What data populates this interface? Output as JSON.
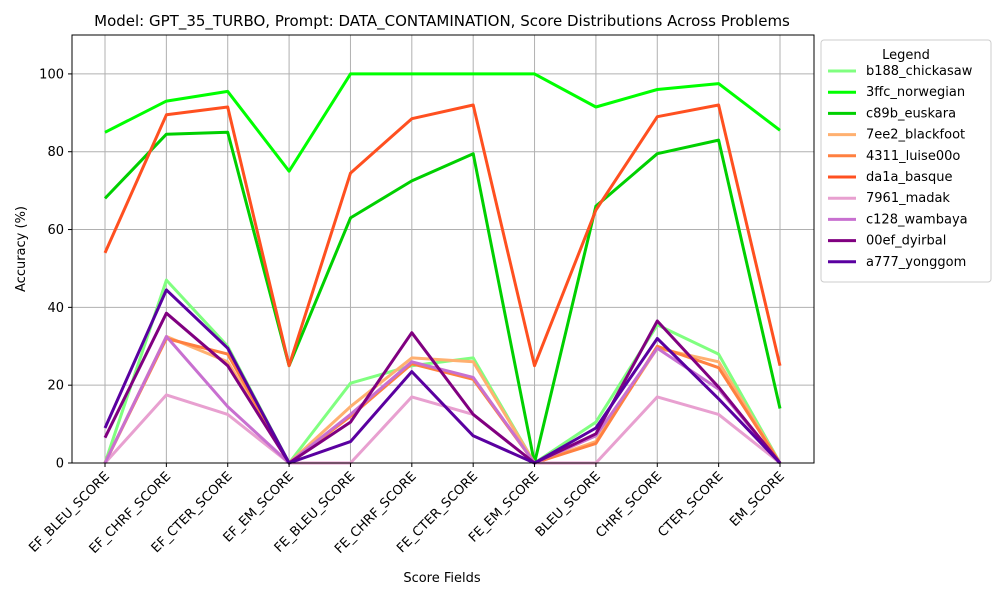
{
  "chart_data": {
    "type": "line",
    "title": "Model: GPT_35_TURBO, Prompt: DATA_CONTAMINATION, Score Distributions Across Problems",
    "xlabel": "Score Fields",
    "ylabel": "Accuracy (%)",
    "ylim": [
      0,
      110
    ],
    "yticks": [
      0,
      20,
      40,
      60,
      80,
      100
    ],
    "grid": true,
    "legend_title": "Legend",
    "legend_position": "outside-right-top",
    "categories": [
      "EF_BLEU_SCORE",
      "EF_CHRF_SCORE",
      "EF_CTER_SCORE",
      "EF_EM_SCORE",
      "FE_BLEU_SCORE",
      "FE_CHRF_SCORE",
      "FE_CTER_SCORE",
      "FE_EM_SCORE",
      "BLEU_SCORE",
      "CHRF_SCORE",
      "CTER_SCORE",
      "EM_SCORE"
    ],
    "series": [
      {
        "name": "b188_chickasaw",
        "color": "#80ff80",
        "values": [
          0,
          47,
          30,
          0,
          20.5,
          25,
          27,
          0,
          10.5,
          35.5,
          28,
          0
        ]
      },
      {
        "name": "3ffc_norwegian",
        "color": "#00ff00",
        "values": [
          85,
          93,
          95.5,
          75,
          100,
          100,
          100,
          100,
          91.5,
          96,
          97.5,
          85.5
        ]
      },
      {
        "name": "c89b_euskara",
        "color": "#00d000",
        "values": [
          68,
          84.5,
          85,
          25,
          63,
          72.5,
          79.5,
          0,
          66,
          79.5,
          83,
          14
        ]
      },
      {
        "name": "7ee2_blackfoot",
        "color": "#ffb070",
        "values": [
          0,
          32.5,
          26,
          0,
          14.5,
          27,
          26,
          0,
          5.5,
          29.5,
          26,
          0
        ]
      },
      {
        "name": "4311_luise00o",
        "color": "#ff8040",
        "values": [
          0,
          32,
          28,
          0,
          12,
          25.5,
          21.5,
          0,
          5,
          30,
          24.5,
          0
        ]
      },
      {
        "name": "da1a_basque",
        "color": "#ff5020",
        "values": [
          54,
          89.5,
          91.5,
          25,
          74.5,
          88.5,
          92,
          25,
          65,
          89,
          92,
          25
        ]
      },
      {
        "name": "7961_madak",
        "color": "#e8a0d0",
        "values": [
          0,
          17.5,
          12.5,
          0,
          0,
          17,
          12.5,
          0,
          0,
          17,
          12.5,
          0
        ]
      },
      {
        "name": "c128_wambaya",
        "color": "#c870d0",
        "values": [
          0,
          32.5,
          14.5,
          0,
          12.5,
          26,
          22,
          0,
          7,
          29.5,
          19,
          0
        ]
      },
      {
        "name": "00ef_dyirbal",
        "color": "#800080",
        "values": [
          6.5,
          38.5,
          25,
          0,
          10.5,
          33.5,
          12.5,
          0,
          7.5,
          36.5,
          19.5,
          0
        ]
      },
      {
        "name": "a777_yonggom",
        "color": "#5a00a0",
        "values": [
          9,
          44.5,
          29.5,
          0,
          5.5,
          23.5,
          7,
          0,
          9,
          32,
          16.5,
          0
        ]
      }
    ]
  }
}
